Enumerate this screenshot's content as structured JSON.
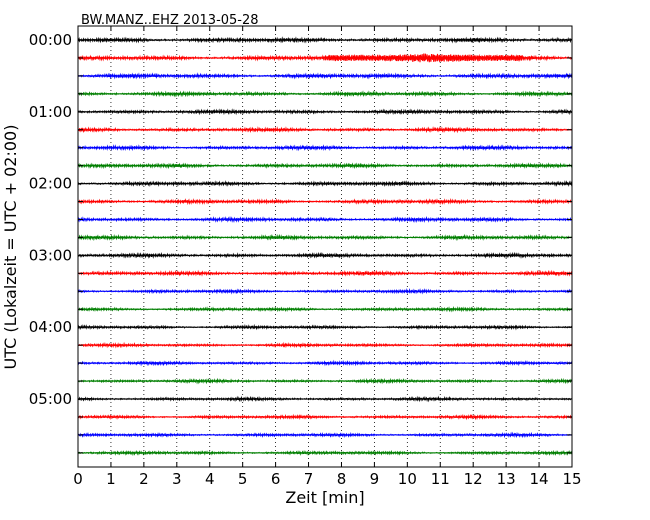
{
  "chart_data": {
    "type": "line",
    "title": "BW.MANZ..EHZ 2013-05-28",
    "xlabel": "Zeit  [min]",
    "ylabel": "UTC (Lokalzeit = UTC + 02:00)",
    "x_range": [
      0,
      15
    ],
    "x_ticks": [
      "0",
      "1",
      "2",
      "3",
      "4",
      "5",
      "6",
      "7",
      "8",
      "9",
      "10",
      "11",
      "12",
      "13",
      "14",
      "15"
    ],
    "y_tick_labels": [
      "00:00",
      "01:00",
      "02:00",
      "03:00",
      "04:00",
      "05:00"
    ],
    "trace_colors": [
      "#000000",
      "#ff0000",
      "#0000ff",
      "#007f00"
    ],
    "trace_interval_min": 15,
    "trace_count": 24,
    "vertical_grid": "dotted",
    "series": [
      {
        "start": "00:00",
        "color": "#000000",
        "amplitude": 0.35
      },
      {
        "start": "00:15",
        "color": "#ff0000",
        "amplitude": 0.35,
        "event": {
          "x_min": [
            7.5,
            13.5
          ],
          "peak_amplitude": 0.9
        }
      },
      {
        "start": "00:30",
        "color": "#0000ff",
        "amplitude": 0.35
      },
      {
        "start": "00:45",
        "color": "#007f00",
        "amplitude": 0.3
      },
      {
        "start": "01:00",
        "color": "#000000",
        "amplitude": 0.3
      },
      {
        "start": "01:15",
        "color": "#ff0000",
        "amplitude": 0.3
      },
      {
        "start": "01:30",
        "color": "#0000ff",
        "amplitude": 0.3
      },
      {
        "start": "01:45",
        "color": "#007f00",
        "amplitude": 0.3
      },
      {
        "start": "02:00",
        "color": "#000000",
        "amplitude": 0.3
      },
      {
        "start": "02:15",
        "color": "#ff0000",
        "amplitude": 0.3
      },
      {
        "start": "02:30",
        "color": "#0000ff",
        "amplitude": 0.3
      },
      {
        "start": "02:45",
        "color": "#007f00",
        "amplitude": 0.3
      },
      {
        "start": "03:00",
        "color": "#000000",
        "amplitude": 0.3
      },
      {
        "start": "03:15",
        "color": "#ff0000",
        "amplitude": 0.3
      },
      {
        "start": "03:30",
        "color": "#0000ff",
        "amplitude": 0.25
      },
      {
        "start": "03:45",
        "color": "#007f00",
        "amplitude": 0.25
      },
      {
        "start": "04:00",
        "color": "#000000",
        "amplitude": 0.25
      },
      {
        "start": "04:15",
        "color": "#ff0000",
        "amplitude": 0.25
      },
      {
        "start": "04:30",
        "color": "#0000ff",
        "amplitude": 0.25
      },
      {
        "start": "04:45",
        "color": "#007f00",
        "amplitude": 0.25
      },
      {
        "start": "05:00",
        "color": "#000000",
        "amplitude": 0.25
      },
      {
        "start": "05:15",
        "color": "#ff0000",
        "amplitude": 0.25
      },
      {
        "start": "05:30",
        "color": "#0000ff",
        "amplitude": 0.25
      },
      {
        "start": "05:45",
        "color": "#007f00",
        "amplitude": 0.25
      }
    ]
  }
}
